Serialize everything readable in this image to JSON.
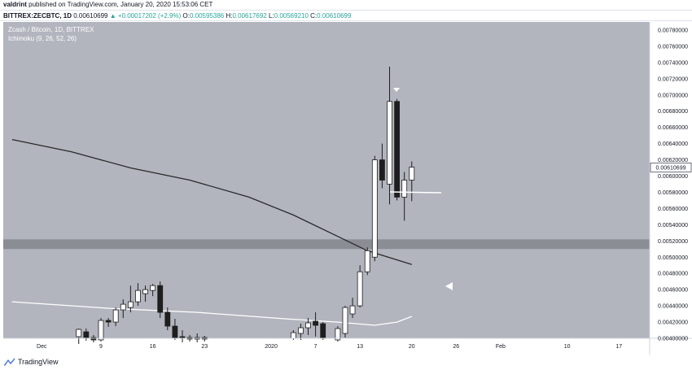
{
  "header": {
    "author": "valdrint",
    "published_text": "published on TradingView.com, January 20, 2020 15:53:06 CET"
  },
  "symbol_bar": {
    "symbol": "BITTREX:ZECBTC, 1D",
    "last": "0.00610699",
    "change_arrow": "▲",
    "change": "+0.00017202 (+2.9%)",
    "open_label": "O:",
    "open": "0.00595386",
    "high_label": "H:",
    "high": "0.00617692",
    "low_label": "L:",
    "low": "0.00569210",
    "close_label": "C:",
    "close": "0.00610699"
  },
  "footer": {
    "brand": "TradingView"
  },
  "colors": {
    "background": "#b2b5be",
    "support_band": "#8a8d94",
    "up_candle": "#ffffff",
    "down_candle": "#1e1e1e",
    "wick": "#1e1e1e",
    "ma_dark": "#2a2a2a",
    "ma_light": "#ffffff",
    "price_label_bg": "#ffffff",
    "axis_text": "#131722"
  },
  "chart_data": {
    "type": "candlestick",
    "title": "Zcash / Bitcoin, 1D, BITTREX",
    "indicator_label": "Ichimoku (9, 26, 52, 26)",
    "x_tick_labels": [
      "Dec",
      "9",
      "16",
      "23",
      "2020",
      "7",
      "13",
      "20",
      "26",
      "Feb",
      "10",
      "17"
    ],
    "y_tick_labels": [
      "0.00400000",
      "0.00420000",
      "0.00440000",
      "0.00460000",
      "0.00480000",
      "0.00500000",
      "0.00520000",
      "0.00540000",
      "0.00560000",
      "0.00580000",
      "0.00600000",
      "0.00620000",
      "0.00640000",
      "0.00660000",
      "0.00680000",
      "0.00700000",
      "0.00720000",
      "0.00740000",
      "0.00760000",
      "0.00780000"
    ],
    "current_price_label": "0.00610699",
    "ylim": [
      0.004,
      0.0079
    ],
    "support_zone": [
      0.0051,
      0.00522
    ],
    "candles": [
      {
        "date": "2019-12-06",
        "o": 0.00402,
        "h": 0.00412,
        "l": 0.00393,
        "c": 0.00411
      },
      {
        "date": "2019-12-07",
        "o": 0.00408,
        "h": 0.00412,
        "l": 0.00397,
        "c": 0.00401
      },
      {
        "date": "2019-12-08",
        "o": 0.00401,
        "h": 0.00404,
        "l": 0.00395,
        "c": 0.00398
      },
      {
        "date": "2019-12-09",
        "o": 0.00398,
        "h": 0.00425,
        "l": 0.00396,
        "c": 0.00422
      },
      {
        "date": "2019-12-10",
        "o": 0.00422,
        "h": 0.00425,
        "l": 0.00414,
        "c": 0.0042
      },
      {
        "date": "2019-12-11",
        "o": 0.0042,
        "h": 0.00438,
        "l": 0.00415,
        "c": 0.00435
      },
      {
        "date": "2019-12-12",
        "o": 0.00435,
        "h": 0.00448,
        "l": 0.00425,
        "c": 0.00442
      },
      {
        "date": "2019-12-13",
        "o": 0.00438,
        "h": 0.00465,
        "l": 0.00432,
        "c": 0.00445
      },
      {
        "date": "2019-12-14",
        "o": 0.00445,
        "h": 0.00468,
        "l": 0.0044,
        "c": 0.00459
      },
      {
        "date": "2019-12-15",
        "o": 0.00455,
        "h": 0.00465,
        "l": 0.00445,
        "c": 0.0046
      },
      {
        "date": "2019-12-16",
        "o": 0.00459,
        "h": 0.00467,
        "l": 0.00452,
        "c": 0.00465
      },
      {
        "date": "2019-12-17",
        "o": 0.00465,
        "h": 0.0047,
        "l": 0.00425,
        "c": 0.00432
      },
      {
        "date": "2019-12-18",
        "o": 0.00432,
        "h": 0.00438,
        "l": 0.0041,
        "c": 0.00415
      },
      {
        "date": "2019-12-19",
        "o": 0.00415,
        "h": 0.00424,
        "l": 0.00398,
        "c": 0.004
      },
      {
        "date": "2019-12-20",
        "o": 0.00402,
        "h": 0.0041,
        "l": 0.00395,
        "c": 0.004
      },
      {
        "date": "2019-12-21",
        "o": 0.00401,
        "h": 0.00404,
        "l": 0.00396,
        "c": 0.00399
      },
      {
        "date": "2019-12-22",
        "o": 0.00399,
        "h": 0.00406,
        "l": 0.00395,
        "c": 0.00401
      },
      {
        "date": "2019-12-23",
        "o": 0.00401,
        "h": 0.00403,
        "l": 0.00396,
        "c": 0.00399
      },
      {
        "date": "2020-01-04",
        "o": 0.004,
        "h": 0.0041,
        "l": 0.00398,
        "c": 0.00407
      },
      {
        "date": "2020-01-05",
        "o": 0.00406,
        "h": 0.00418,
        "l": 0.00398,
        "c": 0.00413
      },
      {
        "date": "2020-01-06",
        "o": 0.00413,
        "h": 0.00425,
        "l": 0.00404,
        "c": 0.00419
      },
      {
        "date": "2020-01-07",
        "o": 0.00421,
        "h": 0.00432,
        "l": 0.00402,
        "c": 0.00416
      },
      {
        "date": "2020-01-08",
        "o": 0.00418,
        "h": 0.0042,
        "l": 0.00398,
        "c": 0.004
      },
      {
        "date": "2020-01-10",
        "o": 0.00398,
        "h": 0.00415,
        "l": 0.00396,
        "c": 0.00412
      },
      {
        "date": "2020-01-11",
        "o": 0.00406,
        "h": 0.0044,
        "l": 0.00401,
        "c": 0.00438
      },
      {
        "date": "2020-01-12",
        "o": 0.0043,
        "h": 0.0045,
        "l": 0.00425,
        "c": 0.0044
      },
      {
        "date": "2020-01-13",
        "o": 0.0044,
        "h": 0.0049,
        "l": 0.00438,
        "c": 0.00482
      },
      {
        "date": "2020-01-14",
        "o": 0.00482,
        "h": 0.00512,
        "l": 0.00478,
        "c": 0.00508
      },
      {
        "date": "2020-01-15",
        "o": 0.005,
        "h": 0.00625,
        "l": 0.00495,
        "c": 0.0062
      },
      {
        "date": "2020-01-16",
        "o": 0.0062,
        "h": 0.0064,
        "l": 0.00585,
        "c": 0.00595
      },
      {
        "date": "2020-01-17",
        "o": 0.0059,
        "h": 0.00735,
        "l": 0.00565,
        "c": 0.00692
      },
      {
        "date": "2020-01-18",
        "o": 0.00692,
        "h": 0.00695,
        "l": 0.0057,
        "c": 0.00574
      },
      {
        "date": "2020-01-19",
        "o": 0.00574,
        "h": 0.00605,
        "l": 0.00545,
        "c": 0.00595
      },
      {
        "date": "2020-01-20",
        "o": 0.00595,
        "h": 0.00618,
        "l": 0.00569,
        "c": 0.00611
      }
    ],
    "series": [
      {
        "points": [
          {
            "date": "2019-11-27",
            "y": 0.00645
          },
          {
            "date": "2019-12-05",
            "y": 0.0063
          },
          {
            "date": "2019-12-13",
            "y": 0.0061
          },
          {
            "date": "2019-12-21",
            "y": 0.00595
          },
          {
            "date": "2019-12-29",
            "y": 0.00574
          },
          {
            "date": "2020-01-04",
            "y": 0.00552
          },
          {
            "date": "2020-01-09",
            "y": 0.0053
          },
          {
            "date": "2020-01-14",
            "y": 0.00508
          },
          {
            "date": "2020-01-20",
            "y": 0.00491
          }
        ]
      },
      {
        "points": [
          {
            "date": "2019-11-27",
            "y": 0.00445
          },
          {
            "date": "2019-12-10",
            "y": 0.00437
          },
          {
            "date": "2019-12-22",
            "y": 0.00432
          },
          {
            "date": "2020-01-03",
            "y": 0.00424
          },
          {
            "date": "2020-01-10",
            "y": 0.0042
          },
          {
            "date": "2020-01-15",
            "y": 0.00416
          },
          {
            "date": "2020-01-18",
            "y": 0.0042
          },
          {
            "date": "2020-01-20",
            "y": 0.00427
          }
        ]
      }
    ]
  }
}
